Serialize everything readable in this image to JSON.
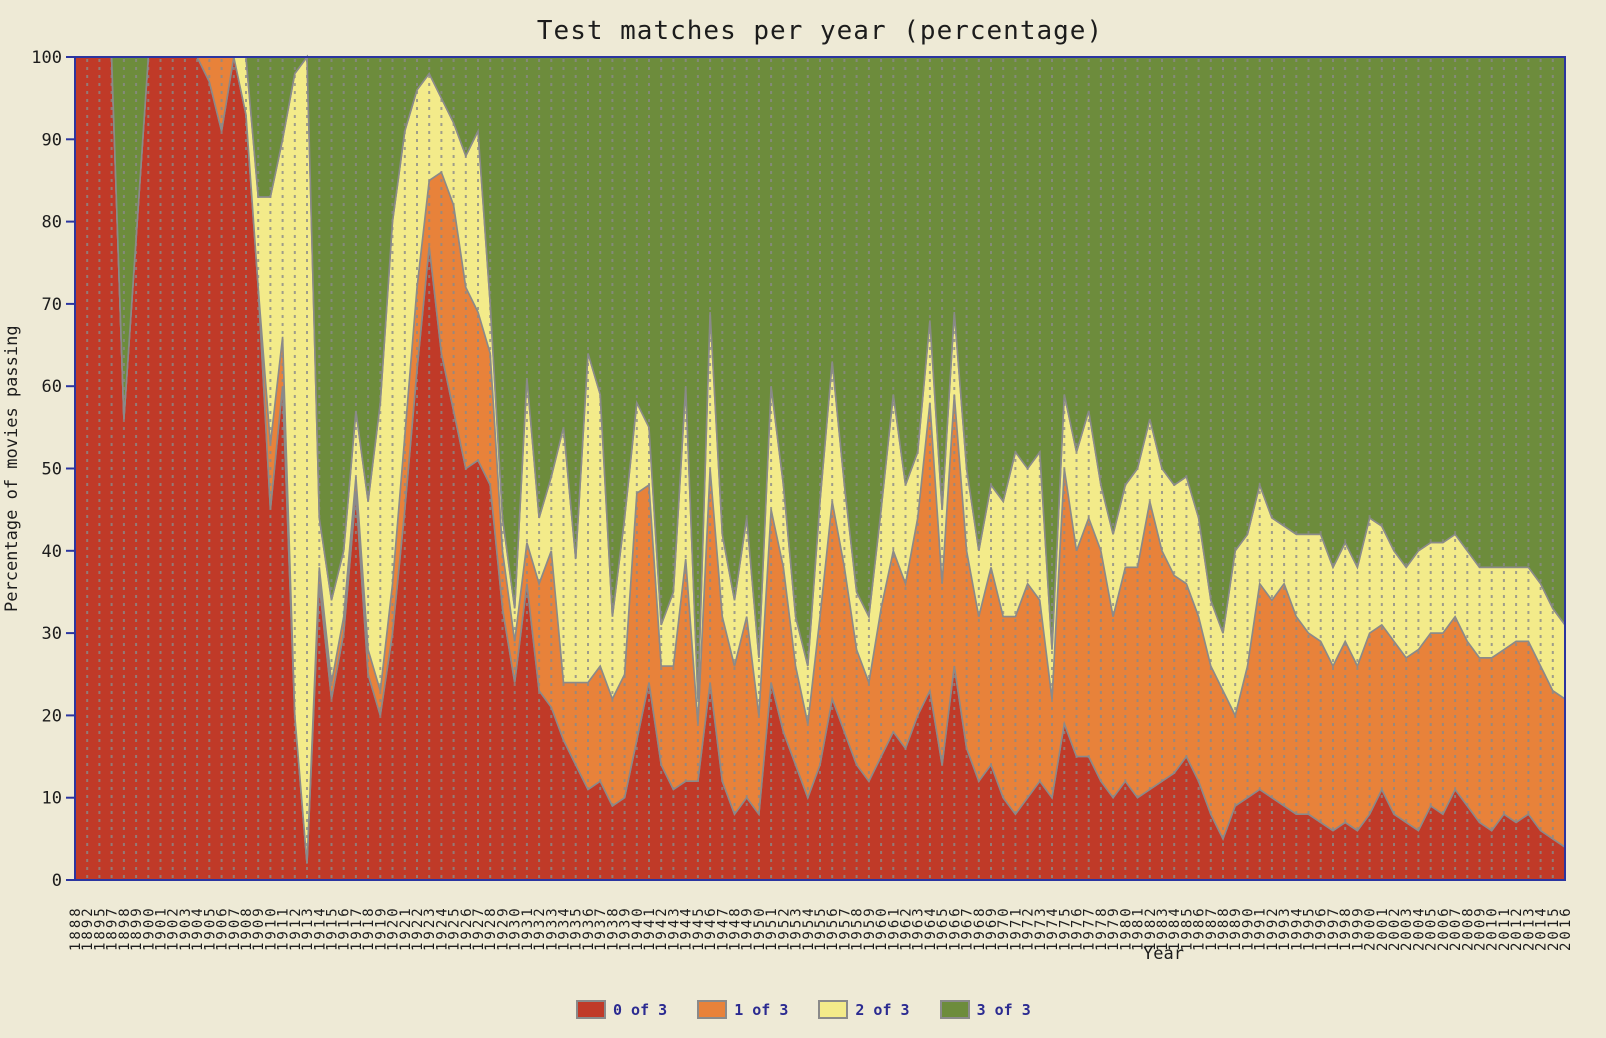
{
  "title": "Test matches per year (percentage)",
  "colors": {
    "background": "#eeead6",
    "frame": "#2b35a0",
    "area_border": "#8a8a8a",
    "gridline_dash": "#8a8a8a",
    "tick_label": "#1c1c1c",
    "legend_text": "#2b2b91",
    "series_0_of_3": "#c03a28",
    "series_1_of_3": "#e8823a",
    "series_2_of_3": "#f3eb8a",
    "series_3_of_3": "#6d8c3c"
  },
  "chart_data": {
    "type": "area",
    "stacked": true,
    "title": "Test matches per year (percentage)",
    "xlabel": "Year",
    "ylabel": "Percentage of movies passing",
    "ylim": [
      0,
      100
    ],
    "yticks": [
      0,
      10,
      20,
      30,
      40,
      50,
      60,
      70,
      80,
      90,
      100
    ],
    "grid": "vertical-dashed-per-year",
    "legend_position": "bottom-center",
    "categories": [
      1888,
      1892,
      1895,
      1897,
      1898,
      1899,
      1900,
      1901,
      1902,
      1903,
      1904,
      1905,
      1906,
      1907,
      1908,
      1909,
      1910,
      1911,
      1912,
      1913,
      1914,
      1915,
      1916,
      1917,
      1918,
      1919,
      1920,
      1921,
      1922,
      1923,
      1924,
      1925,
      1926,
      1927,
      1928,
      1929,
      1930,
      1931,
      1932,
      1933,
      1934,
      1935,
      1936,
      1937,
      1938,
      1939,
      1940,
      1941,
      1942,
      1943,
      1944,
      1945,
      1946,
      1947,
      1948,
      1949,
      1950,
      1951,
      1952,
      1953,
      1954,
      1955,
      1956,
      1957,
      1958,
      1959,
      1960,
      1961,
      1962,
      1963,
      1964,
      1965,
      1966,
      1967,
      1968,
      1969,
      1970,
      1971,
      1972,
      1973,
      1974,
      1975,
      1976,
      1977,
      1978,
      1979,
      1980,
      1981,
      1982,
      1983,
      1984,
      1985,
      1986,
      1987,
      1988,
      1989,
      1990,
      1991,
      1992,
      1993,
      1994,
      1995,
      1996,
      1997,
      1998,
      1999,
      2000,
      2001,
      2002,
      2003,
      2004,
      2005,
      2006,
      2007,
      2008,
      2009,
      2010,
      2011,
      2012,
      2013,
      2014,
      2015,
      2016
    ],
    "series": [
      {
        "name": "0 of 3",
        "color": "#c03a28",
        "values": [
          100,
          100,
          100,
          100,
          56,
          78,
          100,
          100,
          100,
          100,
          100,
          97,
          91,
          100,
          93,
          72,
          45,
          60,
          20,
          2,
          36,
          22,
          30,
          47,
          25,
          20,
          30,
          45,
          62,
          77,
          64,
          57,
          50,
          51,
          48,
          33,
          24,
          36,
          23,
          21,
          17,
          14,
          11,
          12,
          9,
          10,
          17,
          24,
          14,
          11,
          12,
          12,
          24,
          12,
          8,
          10,
          8,
          24,
          18,
          14,
          10,
          14,
          22,
          18,
          14,
          12,
          15,
          18,
          16,
          20,
          23,
          14,
          26,
          16,
          12,
          14,
          10,
          8,
          10,
          12,
          10,
          19,
          15,
          15,
          12,
          10,
          12,
          10,
          11,
          12,
          13,
          15,
          12,
          8,
          5,
          9,
          10,
          11,
          10,
          9,
          8,
          8,
          7,
          6,
          7,
          6,
          8,
          11,
          8,
          7,
          6,
          9,
          8,
          11,
          9,
          7,
          6,
          8,
          7,
          8,
          6,
          5,
          4
        ]
      },
      {
        "name": "1 of 3",
        "color": "#e8823a",
        "values": [
          0,
          0,
          0,
          0,
          0,
          0,
          0,
          0,
          0,
          0,
          0,
          3,
          9,
          0,
          0,
          0,
          8,
          6,
          0,
          0,
          2,
          2,
          2,
          2,
          3,
          3,
          6,
          9,
          10,
          8,
          22,
          25,
          22,
          18,
          16,
          7,
          5,
          5,
          13,
          19,
          7,
          10,
          13,
          14,
          13,
          15,
          30,
          24,
          12,
          15,
          27,
          7,
          26,
          20,
          18,
          22,
          12,
          21,
          20,
          12,
          9,
          18,
          24,
          20,
          14,
          12,
          18,
          22,
          20,
          24,
          35,
          22,
          33,
          24,
          20,
          24,
          22,
          24,
          26,
          22,
          12,
          31,
          25,
          29,
          28,
          22,
          26,
          28,
          35,
          28,
          24,
          21,
          20,
          18,
          18,
          11,
          16,
          25,
          24,
          27,
          24,
          22,
          22,
          20,
          22,
          20,
          22,
          20,
          21,
          20,
          22,
          21,
          22,
          21,
          20,
          20,
          21,
          20,
          22,
          21,
          20,
          18,
          18
        ]
      },
      {
        "name": "2 of 3",
        "color": "#f3eb8a",
        "values": [
          0,
          0,
          0,
          0,
          0,
          0,
          0,
          0,
          0,
          0,
          0,
          0,
          0,
          0,
          7,
          11,
          30,
          24,
          78,
          98,
          6,
          10,
          8,
          8,
          18,
          35,
          44,
          37,
          24,
          13,
          9,
          10,
          16,
          22,
          6,
          4,
          4,
          20,
          8,
          9,
          31,
          15,
          40,
          33,
          10,
          19,
          11,
          7,
          5,
          9,
          21,
          3,
          19,
          10,
          8,
          12,
          7,
          15,
          10,
          6,
          7,
          14,
          17,
          10,
          7,
          8,
          12,
          19,
          12,
          8,
          10,
          9,
          10,
          10,
          8,
          10,
          14,
          20,
          14,
          18,
          6,
          9,
          12,
          13,
          8,
          10,
          10,
          12,
          10,
          10,
          11,
          13,
          12,
          8,
          7,
          20,
          16,
          12,
          10,
          7,
          10,
          12,
          13,
          12,
          12,
          12,
          14,
          12,
          11,
          11,
          12,
          11,
          11,
          10,
          11,
          11,
          11,
          10,
          9,
          9,
          10,
          10,
          9
        ]
      },
      {
        "name": "3 of 3",
        "color": "#6d8c3c",
        "values": [
          0,
          0,
          0,
          0,
          44,
          22,
          0,
          0,
          0,
          0,
          0,
          0,
          0,
          0,
          0,
          17,
          17,
          10,
          2,
          0,
          56,
          66,
          60,
          43,
          54,
          42,
          20,
          9,
          4,
          2,
          5,
          8,
          12,
          9,
          30,
          56,
          67,
          39,
          56,
          51,
          45,
          61,
          36,
          41,
          68,
          56,
          42,
          45,
          69,
          65,
          40,
          78,
          31,
          58,
          66,
          56,
          73,
          40,
          52,
          68,
          74,
          54,
          37,
          52,
          65,
          68,
          55,
          41,
          52,
          48,
          32,
          55,
          31,
          50,
          60,
          52,
          54,
          48,
          50,
          48,
          72,
          41,
          48,
          43,
          52,
          58,
          52,
          50,
          44,
          50,
          52,
          51,
          56,
          66,
          70,
          60,
          58,
          52,
          56,
          57,
          58,
          58,
          58,
          62,
          59,
          62,
          56,
          57,
          60,
          62,
          60,
          59,
          59,
          58,
          60,
          62,
          62,
          62,
          62,
          62,
          64,
          67,
          69
        ]
      }
    ]
  }
}
